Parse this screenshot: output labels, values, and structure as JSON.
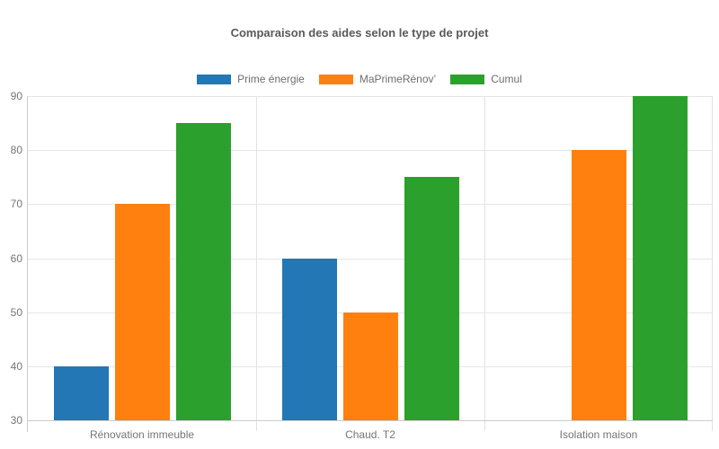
{
  "title": "Comparaison des aides selon le type de projet",
  "chart_data": {
    "type": "bar",
    "title": "Comparaison des aides selon le type de projet",
    "categories": [
      "Rénovation immeuble",
      "Chaud. T2",
      "Isolation maison"
    ],
    "series": [
      {
        "name": "Prime énergie",
        "color": "#2277b4",
        "values": [
          40,
          60,
          30
        ]
      },
      {
        "name": "MaPrimeRénov’",
        "color": "#ff800e",
        "values": [
          70,
          50,
          80
        ]
      },
      {
        "name": "Cumul",
        "color": "#2ca02c",
        "values": [
          85,
          75,
          90
        ]
      }
    ],
    "xlabel": "",
    "ylabel": "",
    "ylim": [
      30,
      90
    ],
    "yticks": [
      30,
      40,
      50,
      60,
      70,
      80,
      90
    ],
    "grid": true,
    "legend_position": "top",
    "note": "Prime énergie bar for Isolation maison is at the axis minimum (30) and therefore not visible"
  }
}
